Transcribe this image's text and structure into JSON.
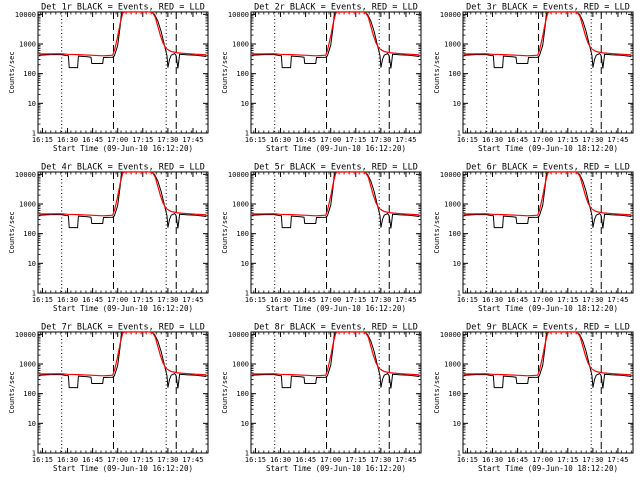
{
  "chart_data": {
    "type": "line",
    "ylabel": "Counts/sec",
    "xlabel": "Start Time (09-Jun-10 16:12:20)",
    "xlabel_variants": [
      "Start Time (09-Jun-10 16:12:20)",
      "Start Time (09-Jun-10 18:12:20)"
    ],
    "y_scale": "log",
    "ylim": [
      1,
      12000
    ],
    "y_ticks": [
      "1",
      "10",
      "100",
      "1000",
      "10000"
    ],
    "x_ticks": [
      "16:15",
      "16:30",
      "16:45",
      "17:00",
      "17:15",
      "17:30",
      "17:45"
    ],
    "x_tick_minutes": [
      15,
      30,
      45,
      60,
      75,
      90,
      105
    ],
    "xlim_minutes": [
      12.33,
      114
    ],
    "dotted_lines_minutes": [
      26.5,
      89.0
    ],
    "dashed_lines_minutes": [
      57.5,
      95.0
    ],
    "series": [
      {
        "name": "Events",
        "color": "#000000",
        "points": [
          [
            13,
            420
          ],
          [
            20,
            440
          ],
          [
            26,
            440
          ],
          [
            27,
            430
          ],
          [
            29,
            410
          ],
          [
            30.5,
            400
          ],
          [
            31,
            160
          ],
          [
            36,
            160
          ],
          [
            36.5,
            390
          ],
          [
            42,
            370
          ],
          [
            44,
            360
          ],
          [
            44.5,
            220
          ],
          [
            51,
            220
          ],
          [
            51.5,
            350
          ],
          [
            57,
            360
          ],
          [
            58,
            400
          ],
          [
            60,
            900
          ],
          [
            61.5,
            4000
          ],
          [
            62,
            9000
          ],
          [
            63,
            12000
          ],
          [
            80,
            12000
          ],
          [
            82,
            10000
          ],
          [
            84,
            6000
          ],
          [
            86,
            2600
          ],
          [
            88,
            900
          ],
          [
            89.5,
            400
          ],
          [
            90,
            160
          ],
          [
            91,
            300
          ],
          [
            92,
            420
          ],
          [
            94,
            480
          ],
          [
            95,
            400
          ],
          [
            96,
            150
          ],
          [
            97,
            450
          ],
          [
            102,
            430
          ],
          [
            107,
            420
          ],
          [
            113,
            380
          ]
        ]
      },
      {
        "name": "LLD",
        "color": "#ff0000",
        "points": [
          [
            13,
            460
          ],
          [
            26,
            470
          ],
          [
            30,
            450
          ],
          [
            36,
            440
          ],
          [
            44,
            420
          ],
          [
            51,
            400
          ],
          [
            57,
            420
          ],
          [
            58,
            600
          ],
          [
            60,
            1800
          ],
          [
            61.5,
            5000
          ],
          [
            63,
            11000
          ],
          [
            64,
            12000
          ],
          [
            80,
            12000
          ],
          [
            81,
            11000
          ],
          [
            82.5,
            8000
          ],
          [
            84,
            4000
          ],
          [
            85.5,
            2000
          ],
          [
            87,
            1100
          ],
          [
            89,
            700
          ],
          [
            92,
            560
          ],
          [
            96,
            500
          ],
          [
            102,
            470
          ],
          [
            113,
            430
          ]
        ]
      }
    ],
    "panels": [
      {
        "title": "Det 1r BLACK = Events, RED = LLD",
        "xlabel": "Start Time (09-Jun-10 16:12:20)"
      },
      {
        "title": "Det 2r BLACK = Events, RED = LLD",
        "xlabel": "Start Time (09-Jun-10 16:12:20)"
      },
      {
        "title": "Det 3r BLACK = Events, RED = LLD",
        "xlabel": "Start Time (09-Jun-10 18:12:20)"
      },
      {
        "title": "Det 4r BLACK = Events, RED = LLD",
        "xlabel": "Start Time (09-Jun-10 16:12:20)"
      },
      {
        "title": "Det 5r BLACK = Events, RED = LLD",
        "xlabel": "Start Time (09-Jun-10 16:12:20)"
      },
      {
        "title": "Det 6r BLACK = Events, RED = LLD",
        "xlabel": "Start Time (09-Jun-10 18:12:20)"
      },
      {
        "title": "Det 7r BLACK = Events, RED = LLD",
        "xlabel": "Start Time (09-Jun-10 16:12:20)"
      },
      {
        "title": "Det 8r BLACK = Events, RED = LLD",
        "xlabel": "Start Time (09-Jun-10 16:12:20)"
      },
      {
        "title": "Det 9r BLACK = Events, RED = LLD",
        "xlabel": "Start Time (09-Jun-10 18:12:20)"
      }
    ]
  }
}
